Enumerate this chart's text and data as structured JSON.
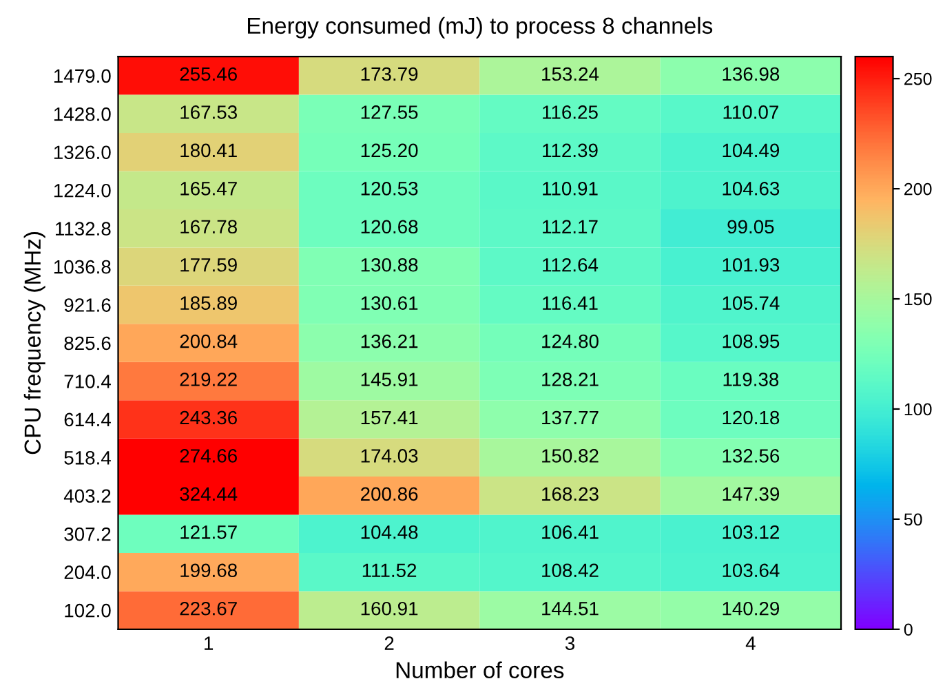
{
  "chart_data": {
    "type": "heatmap",
    "title": "Energy consumed (mJ) to process 8 channels",
    "xlabel": "Number of cores",
    "ylabel": "CPU frequency (MHz)",
    "categories": [
      "1",
      "2",
      "3",
      "4"
    ],
    "y_categories": [
      "1479.0",
      "1428.0",
      "1326.0",
      "1224.0",
      "1132.8",
      "1036.8",
      "921.6",
      "825.6",
      "710.4",
      "614.4",
      "518.4",
      "403.2",
      "307.2",
      "204.0",
      "102.0"
    ],
    "cells": [
      [
        255.46,
        173.79,
        153.24,
        136.98
      ],
      [
        167.53,
        127.55,
        116.25,
        110.07
      ],
      [
        180.41,
        125.2,
        112.39,
        104.49
      ],
      [
        165.47,
        120.53,
        110.91,
        104.63
      ],
      [
        167.78,
        120.68,
        112.17,
        99.05
      ],
      [
        177.59,
        130.88,
        112.64,
        101.93
      ],
      [
        185.89,
        130.61,
        116.41,
        105.74
      ],
      [
        200.84,
        136.21,
        124.8,
        108.95
      ],
      [
        219.22,
        145.91,
        128.21,
        119.38
      ],
      [
        243.36,
        157.41,
        137.77,
        120.18
      ],
      [
        274.66,
        174.03,
        150.82,
        132.56
      ],
      [
        324.44,
        200.86,
        168.23,
        147.39
      ],
      [
        121.57,
        104.48,
        106.41,
        103.12
      ],
      [
        199.68,
        111.52,
        108.42,
        103.64
      ],
      [
        223.67,
        160.91,
        144.51,
        140.29
      ]
    ],
    "cell_labels": [
      [
        "255.46",
        "173.79",
        "153.24",
        "136.98"
      ],
      [
        "167.53",
        "127.55",
        "116.25",
        "110.07"
      ],
      [
        "180.41",
        "125.20",
        "112.39",
        "104.49"
      ],
      [
        "165.47",
        "120.53",
        "110.91",
        "104.63"
      ],
      [
        "167.78",
        "120.68",
        "112.17",
        "99.05"
      ],
      [
        "177.59",
        "130.88",
        "112.64",
        "101.93"
      ],
      [
        "185.89",
        "130.61",
        "116.41",
        "105.74"
      ],
      [
        "200.84",
        "136.21",
        "124.80",
        "108.95"
      ],
      [
        "219.22",
        "145.91",
        "128.21",
        "119.38"
      ],
      [
        "243.36",
        "157.41",
        "137.77",
        "120.18"
      ],
      [
        "274.66",
        "174.03",
        "150.82",
        "132.56"
      ],
      [
        "324.44",
        "200.86",
        "168.23",
        "147.39"
      ],
      [
        "121.57",
        "104.48",
        "106.41",
        "103.12"
      ],
      [
        "199.68",
        "111.52",
        "108.42",
        "103.64"
      ],
      [
        "223.67",
        "160.91",
        "144.51",
        "140.29"
      ]
    ],
    "clim": [
      0,
      260
    ],
    "cticks": [
      0,
      50,
      100,
      150,
      200,
      250
    ]
  }
}
